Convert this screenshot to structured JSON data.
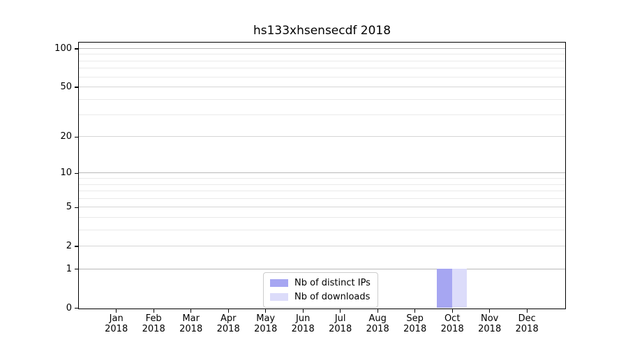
{
  "chart_data": {
    "type": "bar",
    "title": "hs133xhsensecdf 2018",
    "categories": [
      "Jan 2018",
      "Feb 2018",
      "Mar 2018",
      "Apr 2018",
      "May 2018",
      "Jun 2018",
      "Jul 2018",
      "Aug 2018",
      "Sep 2018",
      "Oct 2018",
      "Nov 2018",
      "Dec 2018"
    ],
    "series": [
      {
        "name": "Nb of distinct IPs",
        "color": "#a6a6f2",
        "values": [
          0,
          0,
          0,
          0,
          0,
          0,
          0,
          0,
          0,
          1,
          0,
          0
        ]
      },
      {
        "name": "Nb of downloads",
        "color": "#dcdcfa",
        "values": [
          0,
          0,
          0,
          0,
          0,
          0,
          0,
          0,
          0,
          1,
          0,
          0
        ]
      }
    ],
    "xlabel": "",
    "ylabel": "",
    "y_axis": {
      "scale": "log1p",
      "major_ticks": [
        0,
        1,
        2,
        5,
        10,
        20,
        50,
        100
      ],
      "minor_ticks": [
        3,
        4,
        6,
        7,
        8,
        9,
        30,
        40,
        60,
        70,
        80,
        90
      ],
      "ylim": [
        0,
        112
      ]
    },
    "grid": "horizontal",
    "legend_position": "lower center",
    "colors": {
      "grid_major_decade": "#b9b9b9",
      "grid_major": "#d6d6d6",
      "grid_minor": "#eaeaea",
      "spine": "#000000"
    }
  }
}
